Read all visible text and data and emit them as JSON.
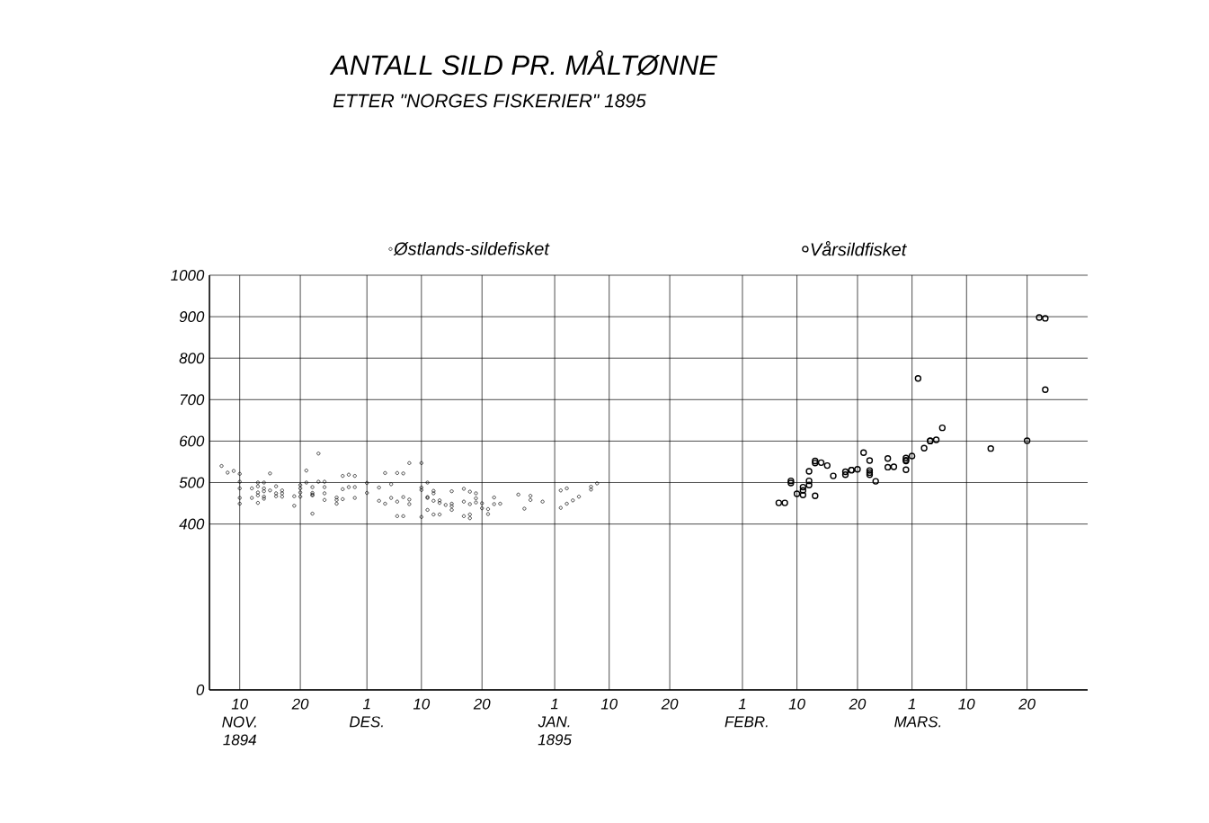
{
  "chart_data": {
    "type": "scatter",
    "title": "ANTALL SILD PR. MÅLTØNNE",
    "subtitle": "ETTER \"NORGES FISKERIER\" 1895",
    "xlim": [
      "1894-11-05",
      "1895-03-30"
    ],
    "xticks": [
      {
        "value": "1894-11-10",
        "label": "10 NOV. 1894"
      },
      {
        "value": "1894-11-20",
        "label": "20"
      },
      {
        "value": "1894-12-01",
        "label": "1 DES."
      },
      {
        "value": "1894-12-10",
        "label": "10"
      },
      {
        "value": "1894-12-20",
        "label": "20"
      },
      {
        "value": "1895-01-01",
        "label": "1 JAN. 1895"
      },
      {
        "value": "1895-01-10",
        "label": "10"
      },
      {
        "value": "1895-01-20",
        "label": "20"
      },
      {
        "value": "1895-02-01",
        "label": "1 FEBR."
      },
      {
        "value": "1895-02-10",
        "label": "10"
      },
      {
        "value": "1895-02-20",
        "label": "20"
      },
      {
        "value": "1895-03-01",
        "label": "1 MARS."
      },
      {
        "value": "1895-03-10",
        "label": "10"
      },
      {
        "value": "1895-03-20",
        "label": "20"
      }
    ],
    "ylim": [
      0,
      1000
    ],
    "yticks": [
      0,
      400,
      500,
      600,
      700,
      800,
      900,
      1000
    ],
    "grid": true,
    "legend": "top",
    "marker": "circle",
    "series": [
      {
        "name": "Østlands-sildefisket",
        "color": "#000000",
        "x": [
          "1894-11-07",
          "1894-11-08",
          "1894-11-09",
          "1894-11-10",
          "1894-11-10",
          "1894-11-10",
          "1894-11-10",
          "1894-11-10",
          "1894-11-15",
          "1894-11-13",
          "1894-11-14",
          "1894-11-12",
          "1894-11-12",
          "1894-11-13",
          "1894-11-14",
          "1894-11-13",
          "1894-11-14",
          "1894-11-13",
          "1894-11-14",
          "1894-11-13",
          "1894-11-14",
          "1894-11-15",
          "1894-11-16",
          "1894-11-17",
          "1894-11-16",
          "1894-11-16",
          "1894-11-17",
          "1894-11-17",
          "1894-11-19",
          "1894-11-19",
          "1894-11-20",
          "1894-11-20",
          "1894-11-20",
          "1894-11-20",
          "1894-11-21",
          "1894-11-21",
          "1894-11-23",
          "1894-11-22",
          "1894-11-22",
          "1894-11-22",
          "1894-11-22",
          "1894-11-24",
          "1894-11-24",
          "1894-11-24",
          "1894-11-22",
          "1894-11-23",
          "1894-11-24",
          "1894-11-27",
          "1894-11-28",
          "1894-11-29",
          "1894-11-26",
          "1894-11-26",
          "1894-11-26",
          "1894-11-27",
          "1894-11-28",
          "1894-11-27",
          "1894-11-29",
          "1894-11-29",
          "1894-12-01",
          "1894-12-01",
          "1894-12-03",
          "1894-12-04",
          "1894-12-05",
          "1894-12-03",
          "1894-12-04",
          "1894-12-05",
          "1894-12-06",
          "1894-12-07",
          "1894-12-06",
          "1894-12-07",
          "1894-12-08",
          "1894-12-08",
          "1894-12-08",
          "1894-12-06",
          "1894-12-07",
          "1894-12-10",
          "1894-12-11",
          "1894-12-10",
          "1894-12-10",
          "1894-12-11",
          "1894-12-11",
          "1894-12-12",
          "1894-12-11",
          "1894-12-10",
          "1894-12-12",
          "1894-12-12",
          "1894-12-13",
          "1894-12-13",
          "1894-12-14",
          "1894-12-15",
          "1894-12-15",
          "1894-12-15",
          "1894-12-15",
          "1894-12-12",
          "1894-12-13",
          "1894-12-17",
          "1894-12-18",
          "1894-12-19",
          "1894-12-19",
          "1894-12-19",
          "1894-12-17",
          "1894-12-18",
          "1894-12-17",
          "1894-12-18",
          "1894-12-18",
          "1894-12-20",
          "1894-12-20",
          "1894-12-21",
          "1894-12-21",
          "1894-12-22",
          "1894-12-22",
          "1894-12-23",
          "1894-12-26",
          "1894-12-28",
          "1894-12-28",
          "1894-12-27",
          "1894-12-30",
          "1895-01-02",
          "1895-01-03",
          "1895-01-02",
          "1895-01-03",
          "1895-01-04",
          "1895-01-05",
          "1895-01-07",
          "1895-01-07",
          "1895-01-08"
        ],
        "values": [
          540,
          524,
          528,
          521,
          502,
          486,
          463,
          449,
          522,
          500,
          500,
          486,
          463,
          491,
          486,
          476,
          479,
          469,
          466,
          451,
          461,
          481,
          491,
          481,
          474,
          467,
          466,
          474,
          444,
          467,
          466,
          494,
          486,
          476,
          529,
          500,
          570,
          489,
          475,
          469,
          471,
          489,
          474,
          458,
          425,
          502,
          502,
          516,
          519,
          516,
          458,
          464,
          449,
          484,
          489,
          460,
          489,
          463,
          475,
          499,
          488,
          523,
          496,
          456,
          449,
          463,
          523,
          522,
          454,
          465,
          547,
          459,
          448,
          419,
          419,
          547,
          500,
          488,
          482,
          465,
          463,
          456,
          434,
          417,
          480,
          474,
          457,
          451,
          446,
          479,
          449,
          443,
          434,
          423,
          423,
          485,
          478,
          474,
          462,
          452,
          454,
          448,
          419,
          423,
          414,
          450,
          438,
          436,
          424,
          464,
          448,
          449,
          471,
          468,
          458,
          437,
          454,
          481,
          486,
          439,
          449,
          457,
          466,
          483,
          490,
          498
        ]
      },
      {
        "name": "Vårsildfisket",
        "color": "#000000",
        "x": [
          "1895-02-07",
          "1895-02-08",
          "1895-02-09",
          "1895-02-09",
          "1895-02-12",
          "1895-02-12",
          "1895-02-11",
          "1895-02-11",
          "1895-02-10",
          "1895-02-11",
          "1895-02-13",
          "1895-02-12",
          "1895-02-13",
          "1895-02-13",
          "1895-02-14",
          "1895-02-15",
          "1895-02-16",
          "1895-02-18",
          "1895-02-18",
          "1895-02-19",
          "1895-02-19",
          "1895-02-20",
          "1895-02-21",
          "1895-02-22",
          "1895-02-22",
          "1895-02-22",
          "1895-02-22",
          "1895-02-23",
          "1895-02-25",
          "1895-02-25",
          "1895-02-26",
          "1895-02-28",
          "1895-02-28",
          "1895-03-01",
          "1895-02-28",
          "1895-02-28",
          "1895-03-03",
          "1895-03-04",
          "1895-03-04",
          "1895-03-05",
          "1895-03-06",
          "1895-03-02",
          "1895-03-14",
          "1895-03-20",
          "1895-03-22",
          "1895-03-23",
          "1895-03-23"
        ],
        "values": [
          451,
          451,
          504,
          499,
          504,
          494,
          489,
          481,
          473,
          470,
          468,
          527,
          552,
          547,
          548,
          541,
          516,
          526,
          519,
          530,
          530,
          532,
          572,
          553,
          529,
          524,
          519,
          503,
          558,
          537,
          538,
          554,
          559,
          564,
          531,
          552,
          583,
          600,
          601,
          603,
          632,
          751,
          582,
          601,
          898,
          896,
          724
        ]
      }
    ]
  }
}
